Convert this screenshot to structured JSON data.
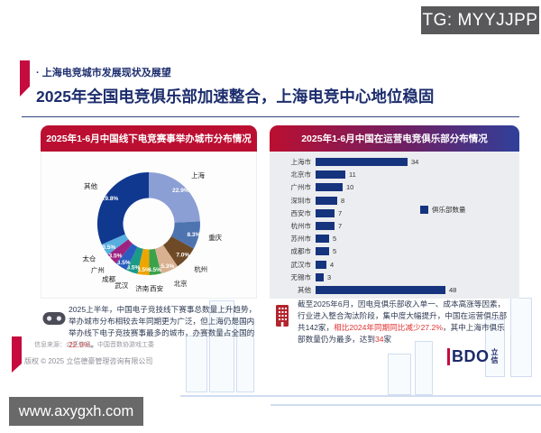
{
  "overlay": {
    "tg_badge": "TG: MYYJJPP",
    "site_watermark": "www.axygxh.com"
  },
  "header": {
    "eyebrow": "· 上海电竞城市发展现状及展望",
    "title": "2025年全国电竞俱乐部加速整合，上海电竞中心地位稳固"
  },
  "chart_data": [
    {
      "type": "pie",
      "donut": true,
      "title": "2025年1-6月中国线下电竞赛事举办城市分布情况",
      "labels": [
        "上海",
        "重庆",
        "杭州",
        "北京",
        "西安",
        "济南",
        "武汉",
        "成都",
        "广州",
        "太仓",
        "其他"
      ],
      "values": [
        22.9,
        8.3,
        7.0,
        5.3,
        3.5,
        3.5,
        3.5,
        3.5,
        3.5,
        3.5,
        29.8
      ],
      "percent_labels": [
        "22.9%",
        "8.3%",
        "7.0%",
        "5.3%",
        "3.5%",
        "3.5%",
        "3.5%",
        "3.5%",
        "3.5%",
        "3.5%",
        "29.8%"
      ],
      "colors": [
        "#8c9fd4",
        "#4e74b0",
        "#6e4a26",
        "#d7b190",
        "#3ba24a",
        "#eea500",
        "#1b9a8a",
        "#2a5cc0",
        "#9e2380",
        "#58aede",
        "#10388f"
      ]
    },
    {
      "type": "bar",
      "orientation": "horizontal",
      "title": "2025年1-6月中国在运营电竞俱乐部分布情况",
      "categories": [
        "上海市",
        "北京市",
        "广州市",
        "深圳市",
        "西安市",
        "杭州市",
        "苏州市",
        "成都市",
        "武汉市",
        "无锡市",
        "其他"
      ],
      "values": [
        34,
        11,
        10,
        8,
        7,
        7,
        5,
        5,
        4,
        3,
        48
      ],
      "legend": [
        "俱乐部数量"
      ],
      "bar_color": "#16337e",
      "value_labels_shown": true
    }
  ],
  "notes": {
    "left": {
      "p0": "2025上半年，中国电子竞技线下赛事总数量上升趋势，举办城市分布相较去年同期更为广泛，但上海仍是国内举办线下电子竞技赛事最多的城市，办赛数量占全国的",
      "hl": "22.9%",
      "p1": "。"
    },
    "right": {
      "p0": "截至2025年6月，因电竞俱乐部收入单一、成本高涨等因素，行业进入整合淘汰阶段，集中度大幅提升，中国在运营俱乐部共142家，",
      "hl1": "相比2024年同期同比减少27.2%",
      "p1": "，其中上海市俱乐部数量仍为最多，达到",
      "hl2": "34",
      "p2": "家"
    }
  },
  "footer": {
    "source": "信息来源：公开信息、中国音数协游戏工委",
    "copyright": "版权 © 2025 立信德豪管理咨询有限公司",
    "logo_text": "BDO",
    "logo_cn_1": "立",
    "logo_cn_2": "信"
  }
}
